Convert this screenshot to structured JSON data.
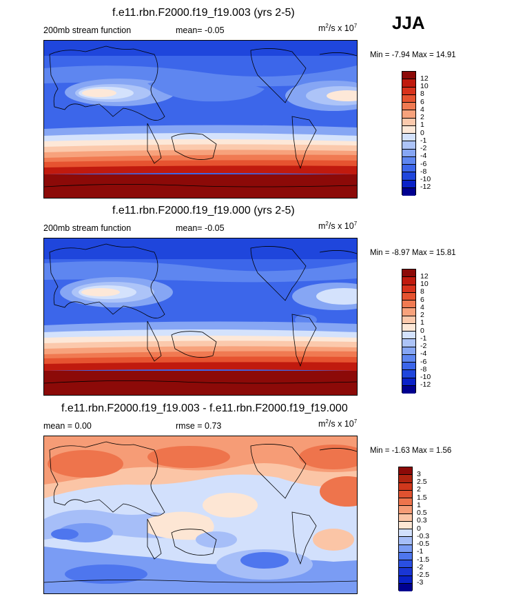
{
  "season": "JJA",
  "colors": {
    "cool": [
      "#000090",
      "#0a22c8",
      "#1f46dc",
      "#3c66ea",
      "#5e86f0",
      "#86a6f4",
      "#adc4f8",
      "#d4e2fc"
    ],
    "warm": [
      "#fde8d8",
      "#fbc9ac",
      "#f7a27c",
      "#f07a52",
      "#e65330",
      "#d8321c",
      "#c01a0e",
      "#8c0a08"
    ],
    "diff": [
      "#000090",
      "#0a22c8",
      "#2a4fe2",
      "#4e76ee",
      "#7a9cf4",
      "#a6bef8",
      "#d2e0fc",
      "#fde6d4",
      "#fbc5a6",
      "#f69c76",
      "#ee744c",
      "#e05230",
      "#b02410",
      "#8c0a08"
    ]
  },
  "panels": [
    {
      "title": "f.e11.rbn.F2000.f19_f19.003 (yrs 2-5)",
      "left_label": "200mb stream function",
      "mean_label": "mean=  -0.05",
      "units_base": "m",
      "units_exp1": "2",
      "units_mid": "/s x 10",
      "units_exp2": "7",
      "minmax": "Min = -7.94 Max = 14.91",
      "levels": [
        "12",
        "10",
        "8",
        "6",
        "4",
        "2",
        "1",
        "0",
        "-1",
        "-2",
        "-4",
        "-6",
        "-8",
        "-10",
        "-12"
      ]
    },
    {
      "title": "f.e11.rbn.F2000.f19_f19.000 (yrs 2-5)",
      "left_label": "200mb stream function",
      "mean_label": "mean=  -0.05",
      "units_base": "m",
      "units_exp1": "2",
      "units_mid": "/s x 10",
      "units_exp2": "7",
      "minmax": "Min = -8.97 Max = 15.81",
      "levels": [
        "12",
        "10",
        "8",
        "6",
        "4",
        "2",
        "1",
        "0",
        "-1",
        "-2",
        "-4",
        "-6",
        "-8",
        "-10",
        "-12"
      ]
    },
    {
      "title": "f.e11.rbn.F2000.f19_f19.003 - f.e11.rbn.F2000.f19_f19.000",
      "left_label": "mean =   0.00",
      "mean_label": "rmse =   0.73",
      "units_base": "m",
      "units_exp1": "2",
      "units_mid": "/s x 10",
      "units_exp2": "7",
      "minmax": "Min = -1.63 Max =   1.56",
      "levels": [
        "3",
        "2.5",
        "2",
        "1.5",
        "1",
        "0.5",
        "0.3",
        "0",
        "-0.3",
        "-0.5",
        "-1",
        "-1.5",
        "-2",
        "-2.5",
        "-3"
      ]
    }
  ],
  "chart_data": [
    {
      "type": "heatmap",
      "title": "f.e11.rbn.F2000.f19_f19.003 (yrs 2-5)",
      "variable": "200mb stream function",
      "mean": -0.05,
      "units": "m2/s x 10^7",
      "min": -7.94,
      "max": 14.91,
      "contour_levels": [
        -12,
        -10,
        -8,
        -6,
        -4,
        -2,
        -1,
        0,
        1,
        2,
        4,
        6,
        8,
        10,
        12
      ],
      "lat_profile": [
        {
          "lat": 90,
          "value": -6
        },
        {
          "lat": 60,
          "value": -4
        },
        {
          "lat": 40,
          "value": -2
        },
        {
          "lat": 20,
          "value": -4
        },
        {
          "lat": 0,
          "value": -1
        },
        {
          "lat": -20,
          "value": 4
        },
        {
          "lat": -40,
          "value": 10
        },
        {
          "lat": -60,
          "value": 13
        },
        {
          "lat": -90,
          "value": 14
        }
      ]
    },
    {
      "type": "heatmap",
      "title": "f.e11.rbn.F2000.f19_f19.000 (yrs 2-5)",
      "variable": "200mb stream function",
      "mean": -0.05,
      "units": "m2/s x 10^7",
      "min": -8.97,
      "max": 15.81,
      "contour_levels": [
        -12,
        -10,
        -8,
        -6,
        -4,
        -2,
        -1,
        0,
        1,
        2,
        4,
        6,
        8,
        10,
        12
      ],
      "lat_profile": [
        {
          "lat": 90,
          "value": -7
        },
        {
          "lat": 60,
          "value": -5
        },
        {
          "lat": 40,
          "value": -2
        },
        {
          "lat": 20,
          "value": -4
        },
        {
          "lat": 0,
          "value": -1
        },
        {
          "lat": -20,
          "value": 4
        },
        {
          "lat": -40,
          "value": 10
        },
        {
          "lat": -60,
          "value": 13
        },
        {
          "lat": -90,
          "value": 15
        }
      ]
    },
    {
      "type": "heatmap",
      "title": "f.e11.rbn.F2000.f19_f19.003 - f.e11.rbn.F2000.f19_f19.000",
      "mean": 0.0,
      "rmse": 0.73,
      "units": "m2/s x 10^7",
      "min": -1.63,
      "max": 1.56,
      "contour_levels": [
        -3,
        -2.5,
        -2,
        -1.5,
        -1,
        -0.5,
        -0.3,
        0,
        0.3,
        0.5,
        1,
        1.5,
        2,
        2.5,
        3
      ]
    }
  ]
}
